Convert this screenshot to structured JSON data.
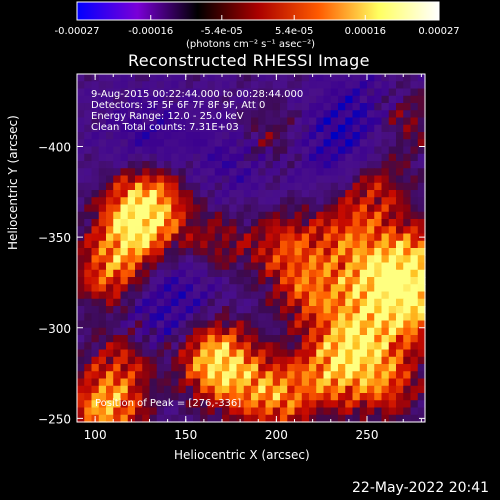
{
  "colorbar": {
    "ticks": [
      "-0.00027",
      "-0.00016",
      "-5.4e-05",
      "5.4e-05",
      "0.00016",
      "0.00027"
    ],
    "unit_label": "(photons cm⁻² s⁻¹ asec⁻²)",
    "range": [
      -0.00027,
      0.00027
    ],
    "colormap": [
      "#0000ff",
      "#7a00d8",
      "#000000",
      "#aa0000",
      "#ff5a00",
      "#ffff60",
      "#ffffff"
    ]
  },
  "chart_data": {
    "type": "heatmap",
    "title": "Reconstructed RHESSI Image",
    "xlabel": "Heliocentric X (arcsec)",
    "ylabel": "Heliocentric Y (arcsec)",
    "xlim": [
      90,
      282
    ],
    "ylim": [
      -440,
      -248
    ],
    "x_ticks": [
      100,
      150,
      200,
      250
    ],
    "y_ticks": [
      -250,
      -300,
      -350,
      -400
    ],
    "grid": false,
    "annotations": [
      "9-Aug-2015 00:22:44.000 to 00:28:44.000",
      "Detectors: 3F 5F 6F 7F 8F 9F, Att 0",
      "Energy Range: 12.0 - 25.0 keV",
      "Clean     Total counts: 7.31E+03"
    ],
    "peak_label": "Position of Peak = [276,-336]",
    "peak": [
      276,
      -336
    ],
    "sources": [
      {
        "x": 106,
        "y": -256,
        "intensity": 1.0
      },
      {
        "x": 118,
        "y": -285,
        "intensity": 0.6
      },
      {
        "x": 165,
        "y": -285,
        "intensity": 0.9
      },
      {
        "x": 175,
        "y": -272,
        "intensity": 0.6
      },
      {
        "x": 200,
        "y": -262,
        "intensity": 0.8
      },
      {
        "x": 230,
        "y": -275,
        "intensity": 0.8
      },
      {
        "x": 245,
        "y": -295,
        "intensity": 0.95
      },
      {
        "x": 260,
        "y": -270,
        "intensity": 0.7
      },
      {
        "x": 275,
        "y": -310,
        "intensity": 0.9
      },
      {
        "x": 276,
        "y": -336,
        "intensity": 1.0
      },
      {
        "x": 255,
        "y": -325,
        "intensity": 0.85
      },
      {
        "x": 220,
        "y": -320,
        "intensity": 0.7
      },
      {
        "x": 205,
        "y": -345,
        "intensity": 0.6
      },
      {
        "x": 240,
        "y": -350,
        "intensity": 0.6
      },
      {
        "x": 122,
        "y": -355,
        "intensity": 1.0
      },
      {
        "x": 108,
        "y": -330,
        "intensity": 0.75
      },
      {
        "x": 130,
        "y": -370,
        "intensity": 0.9
      },
      {
        "x": 165,
        "y": -345,
        "intensity": 0.45
      },
      {
        "x": 255,
        "y": -375,
        "intensity": 0.5
      },
      {
        "x": 195,
        "y": -405,
        "intensity": 0.45
      },
      {
        "x": 270,
        "y": -415,
        "intensity": 0.45
      }
    ],
    "dimmers": [
      {
        "x": 130,
        "y": -300,
        "strength": 1.0
      },
      {
        "x": 150,
        "y": -325,
        "strength": 0.8
      },
      {
        "x": 180,
        "y": -395,
        "strength": 0.9
      },
      {
        "x": 130,
        "y": -405,
        "strength": 0.8
      },
      {
        "x": 230,
        "y": -400,
        "strength": 0.9
      },
      {
        "x": 250,
        "y": -420,
        "strength": 0.9
      }
    ]
  },
  "footer": {
    "datetime": "22-May-2022 20:41"
  }
}
